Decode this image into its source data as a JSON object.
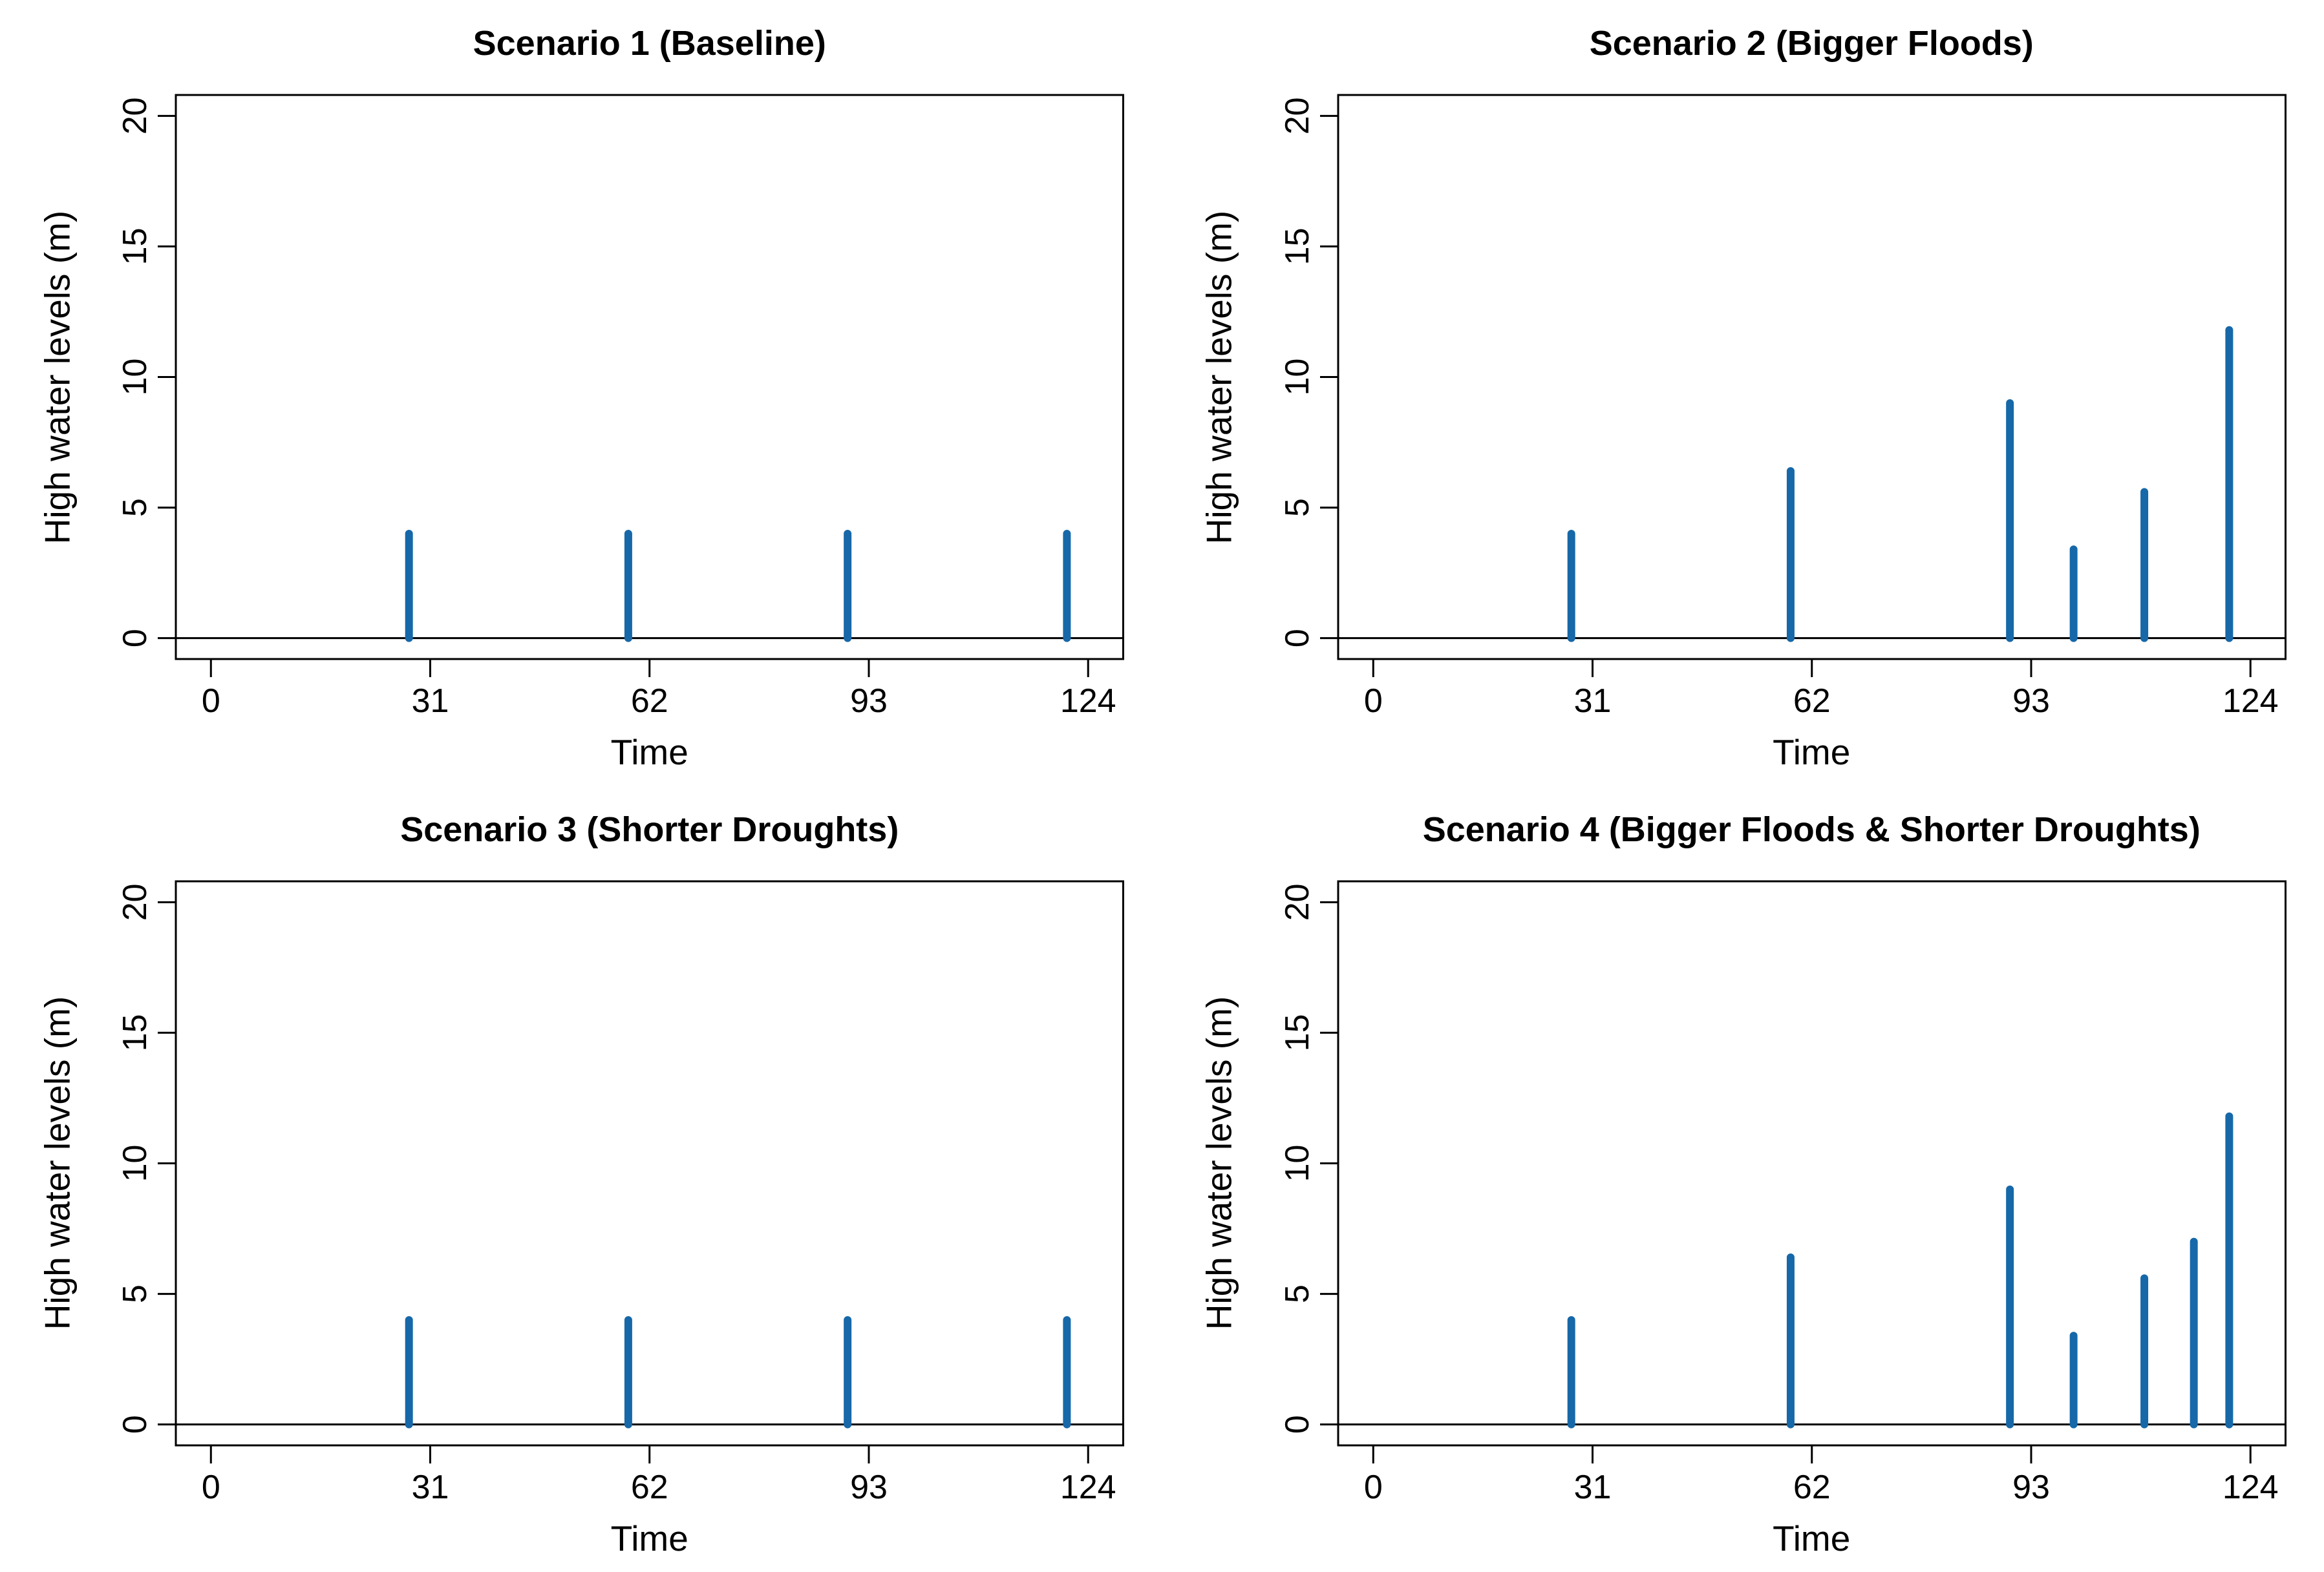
{
  "figure": {
    "background": "#ffffff",
    "axis_color": "#000000",
    "text_color": "#000000",
    "spike_color": "#1668a8"
  },
  "chart_data": [
    {
      "type": "bar",
      "style": "stem",
      "title": "Scenario 1 (Baseline)",
      "xlabel": "Time",
      "ylabel": "High water levels (m)",
      "xlim": [
        0,
        124
      ],
      "ylim": [
        0,
        20
      ],
      "x_ticks": [
        0,
        31,
        62,
        93,
        124
      ],
      "y_ticks": [
        0,
        5,
        10,
        15,
        20
      ],
      "grid": false,
      "legend": null,
      "x": [
        28,
        59,
        90,
        121
      ],
      "values": [
        4.0,
        4.0,
        4.0,
        4.0
      ]
    },
    {
      "type": "bar",
      "style": "stem",
      "title": "Scenario 2 (Bigger Floods)",
      "xlabel": "Time",
      "ylabel": "High water levels (m)",
      "xlim": [
        0,
        124
      ],
      "ylim": [
        0,
        20
      ],
      "x_ticks": [
        0,
        31,
        62,
        93,
        124
      ],
      "y_ticks": [
        0,
        5,
        10,
        15,
        20
      ],
      "grid": false,
      "legend": null,
      "x": [
        28,
        59,
        90,
        99,
        109,
        121
      ],
      "values": [
        4.0,
        6.4,
        9.0,
        3.4,
        5.6,
        11.8
      ]
    },
    {
      "type": "bar",
      "style": "stem",
      "title": "Scenario 3 (Shorter Droughts)",
      "xlabel": "Time",
      "ylabel": "High water levels (m)",
      "xlim": [
        0,
        124
      ],
      "ylim": [
        0,
        20
      ],
      "x_ticks": [
        0,
        31,
        62,
        93,
        124
      ],
      "y_ticks": [
        0,
        5,
        10,
        15,
        20
      ],
      "grid": false,
      "legend": null,
      "x": [
        28,
        59,
        90,
        121
      ],
      "values": [
        4.0,
        4.0,
        4.0,
        4.0
      ]
    },
    {
      "type": "bar",
      "style": "stem",
      "title": "Scenario 4 (Bigger Floods & Shorter Droughts)",
      "xlabel": "Time",
      "ylabel": "High water levels (m)",
      "xlim": [
        0,
        124
      ],
      "ylim": [
        0,
        20
      ],
      "x_ticks": [
        0,
        31,
        62,
        93,
        124
      ],
      "y_ticks": [
        0,
        5,
        10,
        15,
        20
      ],
      "grid": false,
      "legend": null,
      "x": [
        28,
        59,
        90,
        99,
        109,
        116,
        121
      ],
      "values": [
        4.0,
        6.4,
        9.0,
        3.4,
        5.6,
        7.0,
        11.8
      ]
    }
  ]
}
